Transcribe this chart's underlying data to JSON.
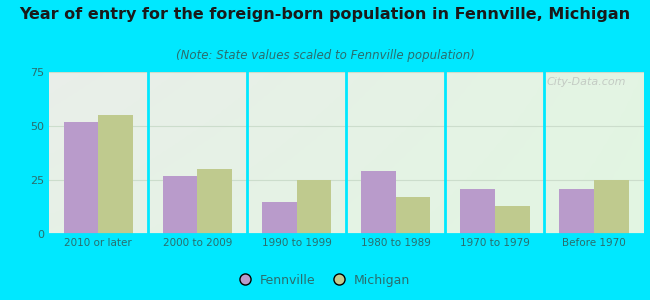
{
  "title": "Year of entry for the foreign-born population in Fennville, Michigan",
  "subtitle": "(Note: State values scaled to Fennville population)",
  "categories": [
    "2010 or later",
    "2000 to 2009",
    "1990 to 1999",
    "1980 to 1989",
    "1970 to 1979",
    "Before 1970"
  ],
  "fennville_values": [
    52,
    27,
    15,
    29,
    21,
    21
  ],
  "michigan_values": [
    55,
    30,
    25,
    17,
    13,
    25
  ],
  "fennville_color": "#b99bcb",
  "michigan_color": "#bfca8e",
  "background_outer": "#00e8ff",
  "ylim": [
    0,
    75
  ],
  "yticks": [
    0,
    25,
    50,
    75
  ],
  "title_fontsize": 11.5,
  "subtitle_fontsize": 8.5,
  "legend_label_fennville": "Fennville",
  "legend_label_michigan": "Michigan",
  "bar_width": 0.35,
  "watermark": "City-Data.com",
  "text_color": "#2a6e6e",
  "grid_color": "#ccddcc"
}
